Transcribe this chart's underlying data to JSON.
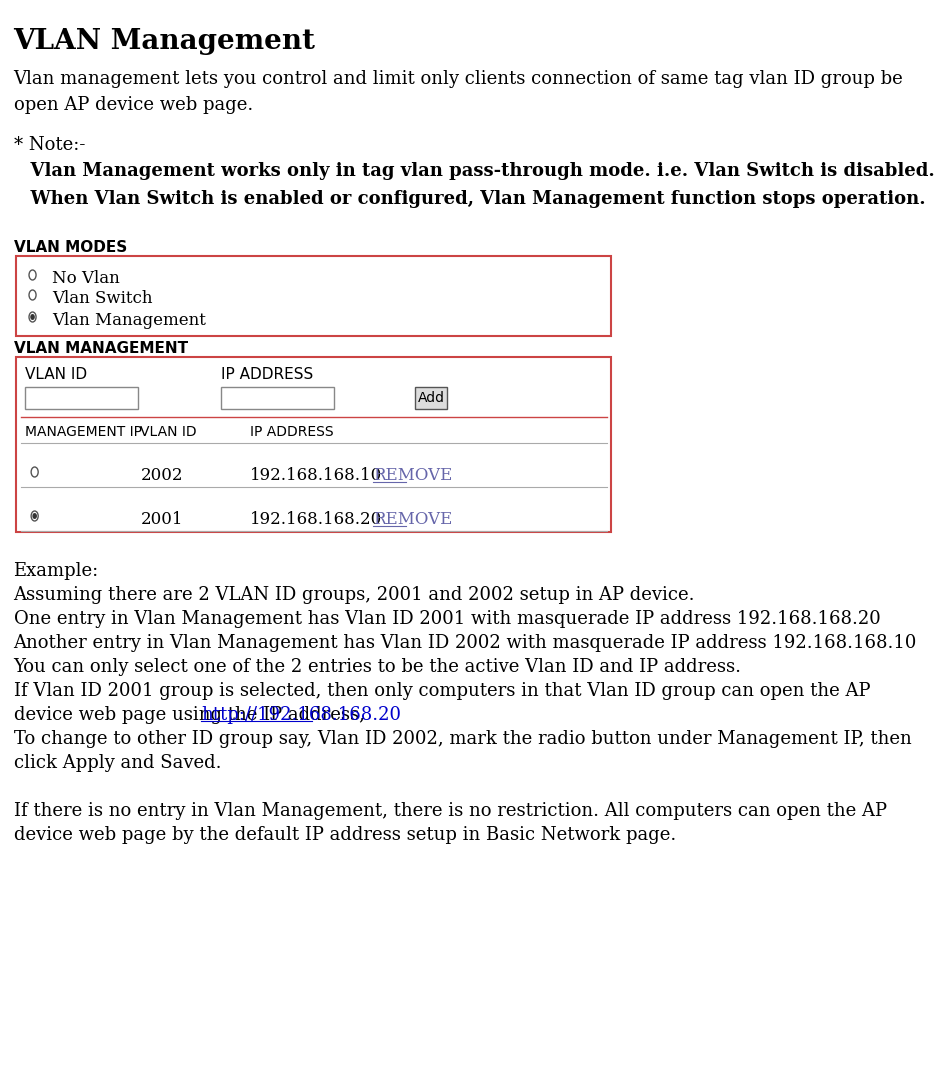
{
  "title": "VLAN Management",
  "intro_line1": "Vlan management lets you control and limit only clients connection of same tag vlan ID group be",
  "intro_line2": "open AP device web page.",
  "note_header": "* Note:-",
  "note_line1": "  Vlan Management works only in tag vlan pass-through mode. i.e. Vlan Switch is disabled.",
  "note_line2": "  When Vlan Switch is enabled or configured, Vlan Management function stops operation.",
  "section1_header": "VLAN MODES",
  "radio_options": [
    "No Vlan",
    "Vlan Switch",
    "Vlan Management"
  ],
  "radio_selected": 2,
  "section2_header": "VLAN MANAGEMENT",
  "table_col1": "MANAGEMENT IP",
  "table_col2": "VLAN ID",
  "table_col3": "IP ADDRESS",
  "table_rows": [
    {
      "selected": false,
      "vlan_id": "2002",
      "ip": "192.168.168.10"
    },
    {
      "selected": true,
      "vlan_id": "2001",
      "ip": "192.168.168.20"
    }
  ],
  "example_header": "Example:",
  "example_lines": [
    "Assuming there are 2 VLAN ID groups, 2001 and 2002 setup in AP device.",
    "One entry in Vlan Management has Vlan ID 2001 with masquerade IP address 192.168.168.20",
    "Another entry in Vlan Management has Vlan ID 2002 with masquerade IP address 192.168.168.10",
    "You can only select one of the 2 entries to be the active Vlan ID and IP address.",
    "If Vlan ID 2001 group is selected, then only computers in that Vlan ID group can open the AP",
    "device web page using the IP address, ",
    "To change to other ID group say, Vlan ID 2002, mark the radio button under Management IP, then",
    "click Apply and Saved.",
    "",
    "If there is no entry in Vlan Management, there is no restriction. All computers can open the AP",
    "device web page by the default IP address setup in Basic Network page."
  ],
  "link_text": "http://192.168.168.20",
  "border_color": "#cc4444",
  "bg_color": "#ffffff",
  "text_color": "#000000",
  "link_color": "#0000cc",
  "remove_color": "#6666aa",
  "font_size_title": 20,
  "font_size_body": 13,
  "font_size_small": 11,
  "font_size_section": 11
}
